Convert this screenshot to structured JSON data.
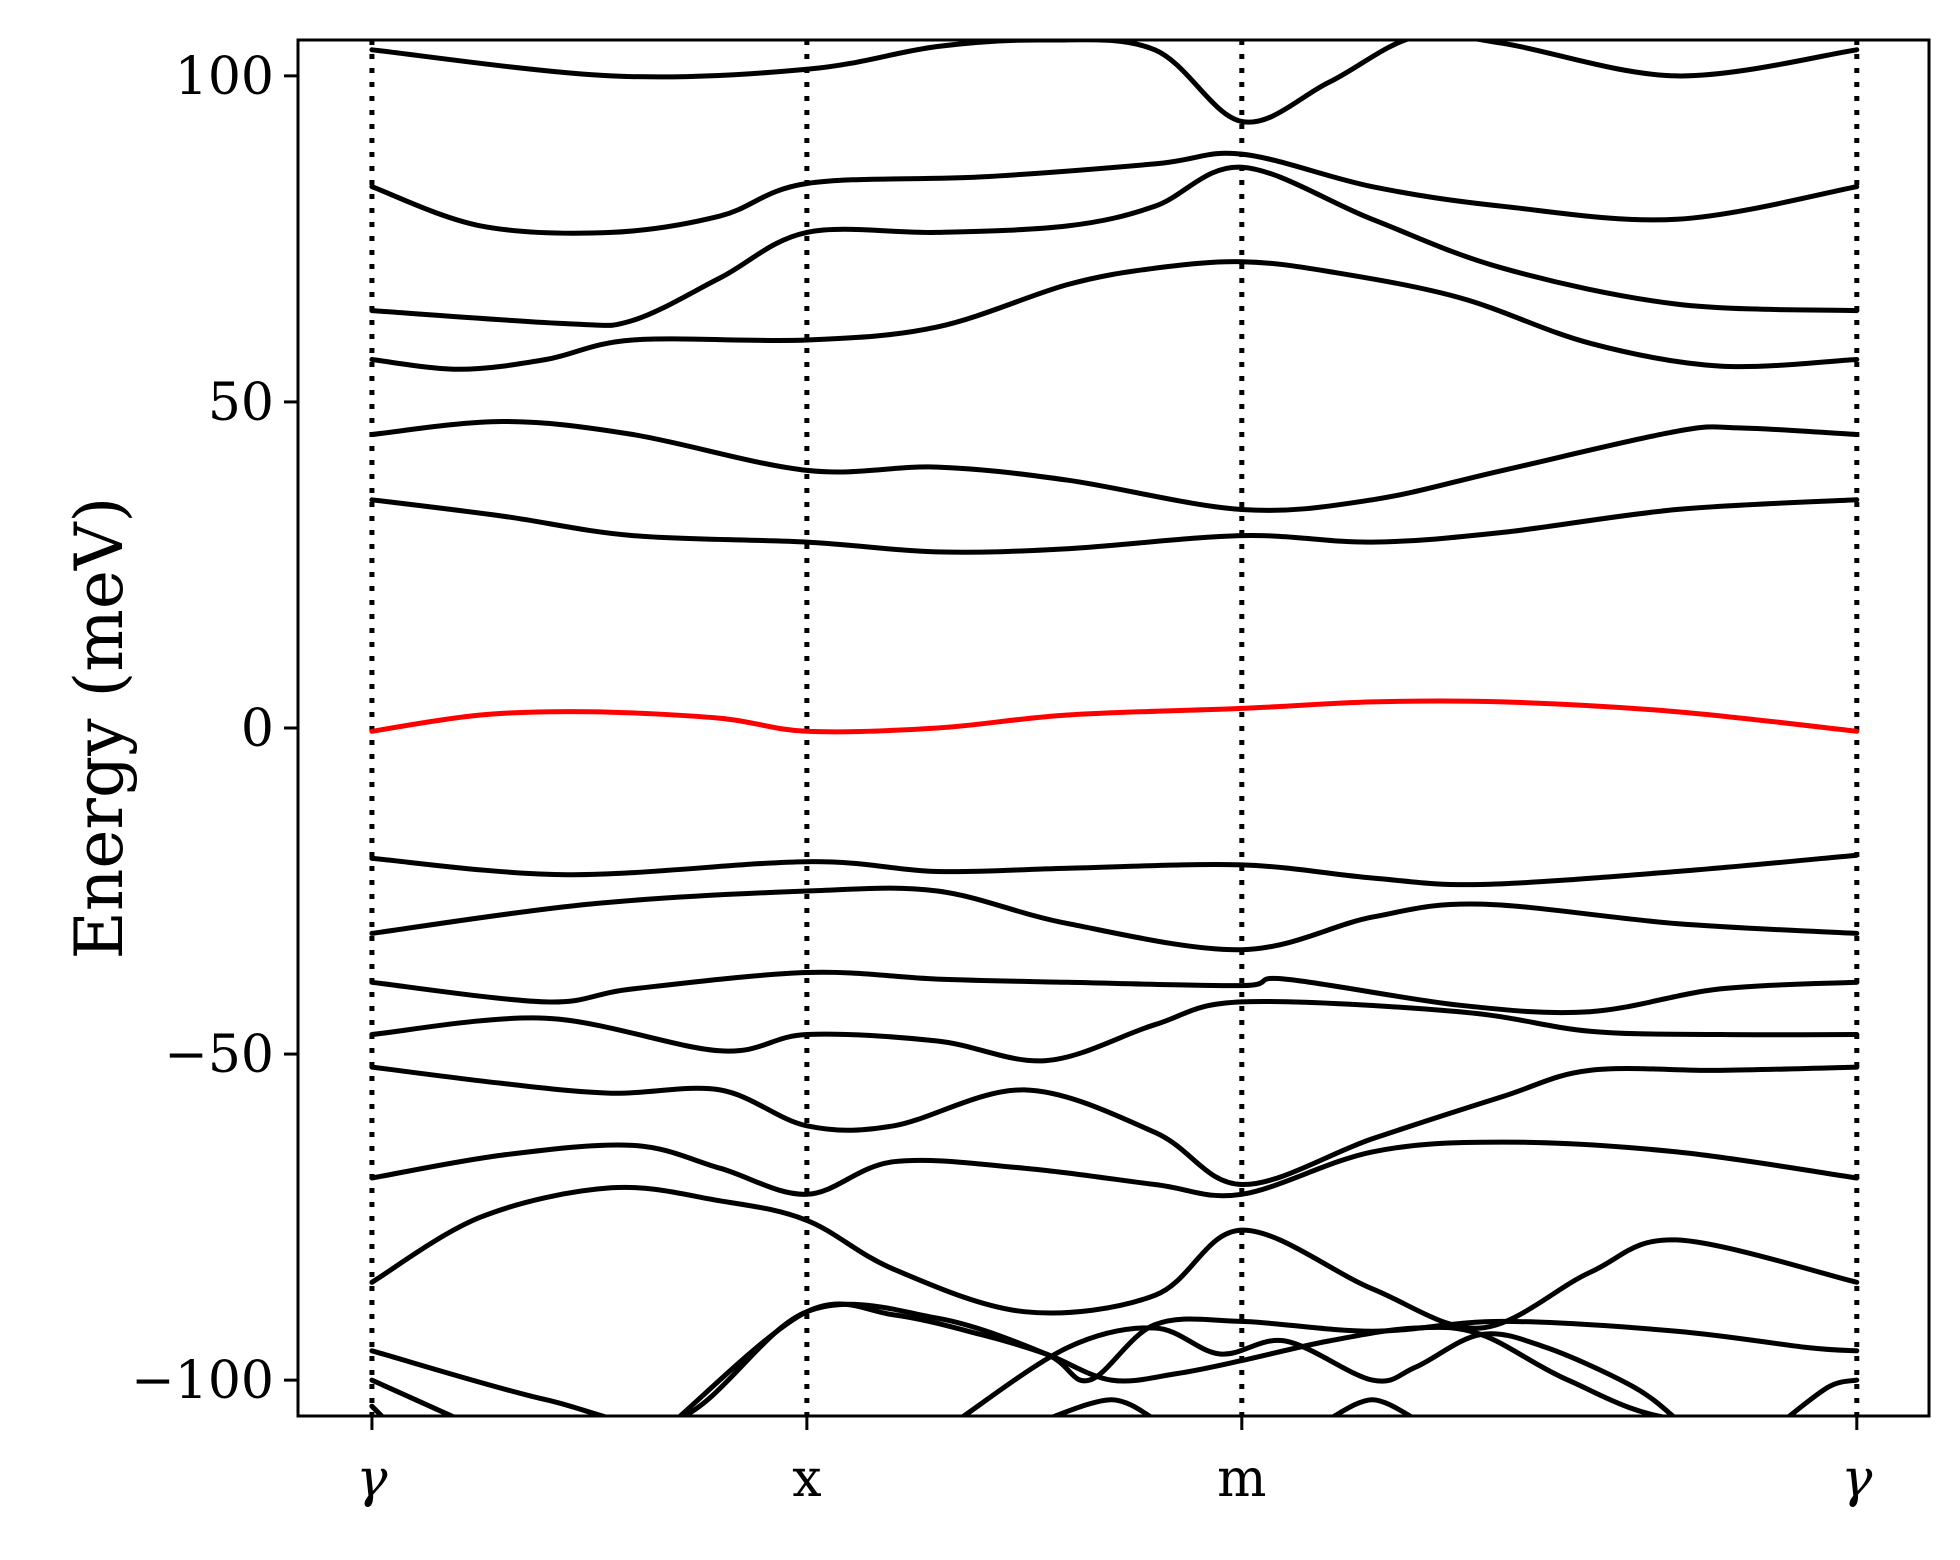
{
  "chart_data": {
    "type": "line",
    "title": "",
    "xlabel": "",
    "ylabel": "Energy (meV)",
    "ylim": [
      -105.5,
      105.5
    ],
    "xlim": [
      -0.17,
      3.58
    ],
    "grid": false,
    "legend": "none",
    "colors": {
      "band": "#000000",
      "highlight": "#ff0000",
      "marker_line": "#000000"
    },
    "x_ticks": [
      {
        "x": 0,
        "label": "γ"
      },
      {
        "x": 1,
        "label": "x"
      },
      {
        "x": 2,
        "label": "m"
      },
      {
        "x": 3.414,
        "label": "γ"
      }
    ],
    "y_ticks": [
      {
        "y": 100,
        "label": "100"
      },
      {
        "y": 50,
        "label": "50"
      },
      {
        "y": 0,
        "label": "0"
      },
      {
        "y": -50,
        "label": "−50"
      },
      {
        "y": -100,
        "label": "−100"
      }
    ],
    "series": [
      {
        "color": "#000000",
        "x": [
          0,
          0.55,
          1,
          1.3,
          1.55,
          1.8,
          2,
          2.2,
          2.4,
          2.6,
          3.0,
          3.414
        ],
        "y": [
          104,
          100,
          101,
          104.5,
          105.5,
          104,
          93,
          99,
          106,
          105,
          100,
          104
        ]
      },
      {
        "color": "#000000",
        "x": [
          0,
          0.25,
          0.55,
          0.8,
          1,
          1.4,
          1.8,
          2,
          2.3,
          2.6,
          3.0,
          3.414
        ],
        "y": [
          83,
          77,
          76,
          78.5,
          83.5,
          84.5,
          86.5,
          88,
          83,
          80,
          78,
          83
        ]
      },
      {
        "color": "#000000",
        "x": [
          0,
          0.45,
          0.6,
          0.8,
          1,
          1.3,
          1.6,
          1.8,
          2,
          2.3,
          2.6,
          3.0,
          3.414
        ],
        "y": [
          64,
          62,
          62.5,
          69,
          76,
          76,
          77,
          80,
          86,
          78,
          70.5,
          65,
          64
        ]
      },
      {
        "color": "#000000",
        "x": [
          0,
          0.2,
          0.4,
          0.6,
          1,
          1.3,
          1.6,
          1.8,
          2,
          2.2,
          2.5,
          2.8,
          3.1,
          3.414
        ],
        "y": [
          56.5,
          55,
          56.5,
          59.5,
          59.5,
          61.5,
          68,
          70.5,
          71.5,
          70,
          66,
          59,
          55.5,
          56.5
        ]
      },
      {
        "color": "#000000",
        "x": [
          0,
          0.3,
          0.6,
          1,
          1.3,
          1.6,
          2,
          2.3,
          2.6,
          3.0,
          3.15,
          3.414
        ],
        "y": [
          45,
          47,
          45,
          39.5,
          40,
          38,
          33.5,
          35,
          39.5,
          45.5,
          46,
          45
        ]
      },
      {
        "color": "#000000",
        "x": [
          0,
          0.3,
          0.6,
          1,
          1.3,
          1.6,
          2,
          2.3,
          2.6,
          3.0,
          3.414
        ],
        "y": [
          35,
          32.5,
          29.5,
          28.5,
          27,
          27.5,
          29.5,
          28.5,
          30,
          33.5,
          35
        ]
      },
      {
        "color": "#ff0000",
        "x": [
          0,
          0.25,
          0.5,
          0.8,
          1,
          1.3,
          1.6,
          2,
          2.3,
          2.6,
          3.0,
          3.414
        ],
        "y": [
          -0.5,
          2,
          2.5,
          1.5,
          -0.5,
          0,
          2,
          3,
          4,
          4,
          2.5,
          -0.5
        ]
      },
      {
        "color": "#000000",
        "x": [
          0,
          0.45,
          1,
          1.3,
          1.6,
          2,
          2.3,
          2.55,
          3.0,
          3.414
        ],
        "y": [
          -20,
          -22.5,
          -20.5,
          -22,
          -21.5,
          -21,
          -23,
          -24,
          -22,
          -19.5
        ]
      },
      {
        "color": "#000000",
        "x": [
          0,
          0.5,
          1,
          1.3,
          1.6,
          2,
          2.3,
          2.55,
          3.0,
          3.414
        ],
        "y": [
          -31.5,
          -27,
          -25,
          -25,
          -30,
          -34,
          -29,
          -27,
          -30,
          -31.5
        ]
      },
      {
        "color": "#000000",
        "x": [
          0,
          0.4,
          0.6,
          1,
          1.3,
          1.6,
          2,
          2.1,
          2.5,
          2.8,
          3.1,
          3.414
        ],
        "y": [
          -39,
          -42,
          -40,
          -37.5,
          -38.5,
          -39,
          -39.5,
          -38.5,
          -42.5,
          -43.5,
          -40,
          -39
        ]
      },
      {
        "color": "#000000",
        "x": [
          0,
          0.4,
          0.8,
          1,
          1.3,
          1.55,
          1.8,
          2,
          2.5,
          2.8,
          3.1,
          3.414
        ],
        "y": [
          -47,
          -44.5,
          -49.5,
          -47,
          -48,
          -51,
          -45.5,
          -42,
          -43.5,
          -46.5,
          -47,
          -47
        ]
      },
      {
        "color": "#000000",
        "x": [
          0,
          0.3,
          0.55,
          0.8,
          1,
          1.2,
          1.5,
          1.8,
          2,
          2.3,
          2.6,
          2.8,
          3.1,
          3.414
        ],
        "y": [
          -52,
          -54.5,
          -56,
          -55.5,
          -61,
          -61,
          -55.5,
          -62,
          -70,
          -63,
          -56.5,
          -52.5,
          -52.5,
          -52
        ]
      },
      {
        "color": "#000000",
        "x": [
          0,
          0.3,
          0.6,
          0.8,
          1,
          1.2,
          1.5,
          1.8,
          2,
          2.3,
          2.6,
          3.0,
          3.414
        ],
        "y": [
          -69,
          -65.5,
          -64,
          -67.5,
          -71.5,
          -66.5,
          -67.5,
          -70,
          -71.5,
          -65,
          -63.5,
          -65,
          -69
        ]
      },
      {
        "color": "#000000",
        "x": [
          0,
          0.25,
          0.55,
          0.8,
          1,
          1.2,
          1.5,
          1.8,
          2,
          2.3,
          2.55,
          2.8,
          3.0,
          3.414
        ],
        "y": [
          -85,
          -75,
          -70.5,
          -72.5,
          -75.5,
          -83,
          -89.5,
          -87,
          -77,
          -86,
          -92,
          -83.5,
          -78.5,
          -85
        ]
      },
      {
        "color": "#000000",
        "x": [
          0,
          0.4,
          0.7,
          1,
          1.3,
          1.55,
          1.65,
          1.8,
          2,
          2.3,
          2.6,
          3.0,
          3.3,
          3.414
        ],
        "y": [
          -95.5,
          -103,
          -106,
          -89.5,
          -90.5,
          -96,
          -100,
          -91.5,
          -91,
          -92.5,
          -91,
          -92.5,
          -95,
          -95.5
        ]
      },
      {
        "color": "#000000",
        "x": [
          0.7,
          1,
          1.2,
          1.4,
          1.55,
          1.7,
          1.85,
          2,
          2.2,
          2.4,
          2.55,
          2.75,
          3.0,
          3.414
        ],
        "y": [
          -106,
          -89.5,
          -90,
          -93,
          -96,
          -100,
          -99,
          -97,
          -94,
          -92,
          -93,
          -100,
          -106,
          -106
        ]
      },
      {
        "color": "#000000",
        "x": [
          0,
          0.2
        ],
        "y": [
          -100,
          -106
        ]
      },
      {
        "color": "#000000",
        "x": [
          1.35,
          1.6,
          1.8,
          1.95,
          2.1,
          2.3,
          2.4,
          2.55,
          2.7,
          2.9,
          3.0
        ],
        "y": [
          -106,
          -95,
          -92,
          -96,
          -94,
          -100,
          -98,
          -93,
          -95,
          -101,
          -106
        ]
      },
      {
        "color": "#000000",
        "x": [
          1.55,
          1.7,
          1.8
        ],
        "y": [
          -106,
          -103,
          -106
        ]
      },
      {
        "color": "#000000",
        "x": [
          2.2,
          2.3,
          2.4
        ],
        "y": [
          -106,
          -103,
          -106
        ]
      },
      {
        "color": "#000000",
        "x": [
          3.25,
          3.35,
          3.414
        ],
        "y": [
          -106,
          -101,
          -100
        ]
      },
      {
        "color": "#000000",
        "x": [
          0,
          0.03
        ],
        "y": [
          -104,
          -106
        ]
      }
    ]
  }
}
